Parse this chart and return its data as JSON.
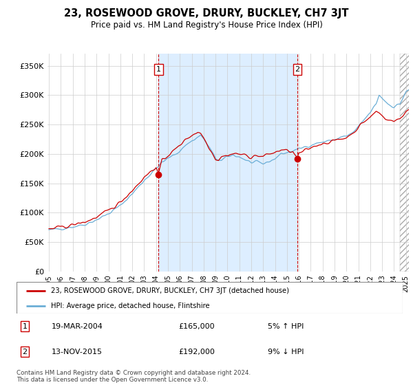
{
  "title": "23, ROSEWOOD GROVE, DRURY, BUCKLEY, CH7 3JT",
  "subtitle": "Price paid vs. HM Land Registry's House Price Index (HPI)",
  "legend_line1": "23, ROSEWOOD GROVE, DRURY, BUCKLEY, CH7 3JT (detached house)",
  "legend_line2": "HPI: Average price, detached house, Flintshire",
  "transaction1_label": "1",
  "transaction1_date": "19-MAR-2004",
  "transaction1_price": "£165,000",
  "transaction1_hpi": "5% ↑ HPI",
  "transaction2_label": "2",
  "transaction2_date": "13-NOV-2015",
  "transaction2_price": "£192,000",
  "transaction2_hpi": "9% ↓ HPI",
  "footnote": "Contains HM Land Registry data © Crown copyright and database right 2024.\nThis data is licensed under the Open Government Licence v3.0.",
  "hpi_color": "#6baed6",
  "price_color": "#cc0000",
  "marker_color": "#cc0000",
  "vline_color": "#cc0000",
  "fill_color": "#ddeeff",
  "ylim": [
    0,
    370000
  ],
  "yticks": [
    0,
    50000,
    100000,
    150000,
    200000,
    250000,
    300000,
    350000
  ],
  "ytick_labels": [
    "£0",
    "£50K",
    "£100K",
    "£150K",
    "£200K",
    "£250K",
    "£300K",
    "£350K"
  ],
  "transaction1_x": 2004.21,
  "transaction1_y": 165000,
  "transaction2_x": 2015.87,
  "transaction2_y": 192000,
  "xmin": 1995.0,
  "xmax": 2025.25,
  "hatch_start": 2024.5,
  "bg_color": "#ffffff",
  "grid_color": "#cccccc"
}
